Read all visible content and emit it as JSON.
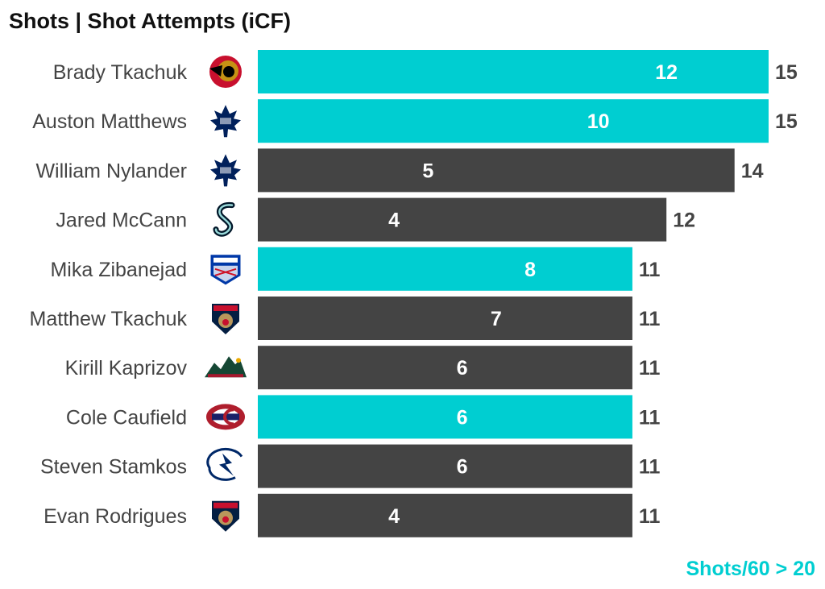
{
  "title": "Shots | Shot Attempts (iCF)",
  "footnote": "Shots/60 > 20",
  "colors": {
    "highlight": "#00CED1",
    "default": "#444444",
    "label_text": "#444444",
    "footnote": "#00CED1"
  },
  "chart_data": {
    "type": "bar",
    "orientation": "horizontal",
    "title": "Shots | Shot Attempts (iCF)",
    "categories": [
      "Brady Tkachuk",
      "Auston Matthews",
      "William Nylander",
      "Jared McCann",
      "Mika Zibanejad",
      "Matthew Tkachuk",
      "Kirill Kaprizov",
      "Cole Caufield",
      "Steven Stamkos",
      "Evan Rodrigues"
    ],
    "teams": [
      "Ottawa Senators",
      "Toronto Maple Leafs",
      "Toronto Maple Leafs",
      "Seattle Kraken",
      "New York Rangers",
      "Florida Panthers",
      "Minnesota Wild",
      "Montreal Canadiens",
      "Tampa Bay Lightning",
      "Florida Panthers"
    ],
    "team_icons": [
      "senators-logo-icon",
      "maple-leafs-logo-icon",
      "maple-leafs-logo-icon",
      "kraken-logo-icon",
      "rangers-logo-icon",
      "panthers-logo-icon",
      "wild-logo-icon",
      "canadiens-logo-icon",
      "lightning-logo-icon",
      "panthers-logo-icon"
    ],
    "series": [
      {
        "name": "Shots",
        "values": [
          12,
          10,
          5,
          4,
          8,
          7,
          6,
          6,
          6,
          4
        ]
      },
      {
        "name": "Shot Attempts (iCF)",
        "values": [
          15,
          15,
          14,
          12,
          11,
          11,
          11,
          11,
          11,
          11
        ]
      }
    ],
    "highlighted": [
      true,
      true,
      false,
      false,
      true,
      false,
      false,
      true,
      false,
      false
    ],
    "xlim": [
      0,
      15
    ],
    "grid": false,
    "legend": "none"
  }
}
